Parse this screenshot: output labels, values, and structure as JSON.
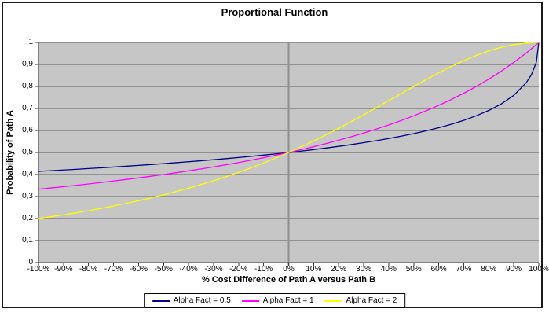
{
  "chart_data": {
    "type": "line",
    "title": "Proportional Function",
    "xlabel": "% Cost Difference of Path A versus Path B",
    "ylabel": "Probability of Path A",
    "xlim": [
      -1,
      1
    ],
    "ylim": [
      0,
      1
    ],
    "grid": true,
    "legend_position": "bottom",
    "plot_bg_color": "#c6c6c6",
    "grid_color": "#5f5f5f",
    "axis_cross_color": "#8f8f8f",
    "x_ticks": [
      -1,
      -0.9,
      -0.8,
      -0.7,
      -0.6,
      -0.5,
      -0.4,
      -0.3,
      -0.2,
      -0.1,
      0,
      0.1,
      0.2,
      0.3,
      0.4,
      0.5,
      0.6,
      0.7,
      0.8,
      0.9,
      1
    ],
    "x_tick_labels": [
      "-100%",
      "-90%",
      "-80%",
      "-70%",
      "-60%",
      "-50%",
      "-40%",
      "-30%",
      "-20%",
      "-10%",
      "0%",
      "10%",
      "20%",
      "30%",
      "40%",
      "50%",
      "60%",
      "70%",
      "80%",
      "90%",
      "100%"
    ],
    "y_ticks": [
      0,
      0.1,
      0.2,
      0.3,
      0.4,
      0.5,
      0.6,
      0.7,
      0.8,
      0.9,
      1
    ],
    "y_tick_labels": [
      "0",
      "0,1",
      "0,2",
      "0,3",
      "0,4",
      "0,5",
      "0,6",
      "0,7",
      "0,8",
      "0,9",
      "1"
    ],
    "x_values": [
      -1,
      -0.95,
      -0.9,
      -0.85,
      -0.8,
      -0.75,
      -0.7,
      -0.65,
      -0.6,
      -0.55,
      -0.5,
      -0.45,
      -0.4,
      -0.35,
      -0.3,
      -0.25,
      -0.2,
      -0.15,
      -0.1,
      -0.05,
      0,
      0.05,
      0.1,
      0.15,
      0.2,
      0.25,
      0.3,
      0.35,
      0.4,
      0.45,
      0.5,
      0.55,
      0.6,
      0.65,
      0.7,
      0.75,
      0.8,
      0.85,
      0.9,
      0.95,
      0.97,
      0.99,
      1
    ],
    "series": [
      {
        "name": "Alpha Fact = 0,5",
        "color": "#000080",
        "values": [
          0.4142,
          0.4173,
          0.4205,
          0.4237,
          0.4271,
          0.4305,
          0.4341,
          0.4377,
          0.4415,
          0.4454,
          0.4495,
          0.4537,
          0.458,
          0.4626,
          0.4672,
          0.4721,
          0.4772,
          0.4825,
          0.4881,
          0.4939,
          0.5,
          0.5064,
          0.5132,
          0.5203,
          0.5279,
          0.5359,
          0.5445,
          0.5536,
          0.5635,
          0.5742,
          0.5858,
          0.5985,
          0.6126,
          0.6283,
          0.6461,
          0.6667,
          0.691,
          0.7208,
          0.7597,
          0.8172,
          0.8524,
          0.9091,
          1
        ]
      },
      {
        "name": "Alpha Fact = 1",
        "color": "#ff00ff",
        "values": [
          0.3333,
          0.339,
          0.3448,
          0.3509,
          0.3571,
          0.3636,
          0.3704,
          0.3774,
          0.3846,
          0.3922,
          0.4,
          0.4082,
          0.4167,
          0.4255,
          0.4348,
          0.4444,
          0.4545,
          0.4651,
          0.4762,
          0.4878,
          0.5,
          0.5128,
          0.5263,
          0.5405,
          0.5556,
          0.5714,
          0.5882,
          0.6061,
          0.625,
          0.6452,
          0.6667,
          0.6897,
          0.7143,
          0.7407,
          0.7692,
          0.8,
          0.8333,
          0.8696,
          0.9091,
          0.9524,
          0.9709,
          0.9901,
          1
        ]
      },
      {
        "name": "Alpha Fact = 2",
        "color": "#ffff00",
        "values": [
          0.2,
          0.2082,
          0.2169,
          0.2261,
          0.2358,
          0.2462,
          0.2571,
          0.2686,
          0.2809,
          0.2939,
          0.3077,
          0.3223,
          0.3378,
          0.3543,
          0.3717,
          0.3902,
          0.4098,
          0.4306,
          0.4525,
          0.4756,
          0.5,
          0.5256,
          0.5525,
          0.5806,
          0.6098,
          0.64,
          0.6711,
          0.703,
          0.7353,
          0.7677,
          0.8,
          0.8316,
          0.8621,
          0.8909,
          0.9174,
          0.9412,
          0.9615,
          0.978,
          0.9901,
          0.9975,
          0.9991,
          0.9999,
          1
        ]
      }
    ]
  }
}
